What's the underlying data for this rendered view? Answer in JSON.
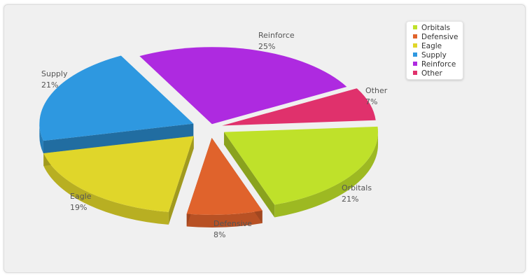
{
  "chart_data": {
    "type": "pie",
    "variant": "3d-exploded",
    "categories": [
      "Orbitals",
      "Defensive",
      "Eagle",
      "Supply",
      "Reinforce",
      "Other"
    ],
    "values": [
      21,
      8,
      19,
      21,
      25,
      7
    ],
    "unit": "%",
    "colors": [
      "#bfe12a",
      "#e0632c",
      "#e0d62a",
      "#2e98e0",
      "#ae2ae0",
      "#e0316c"
    ],
    "legend": "top-right",
    "labels": [
      {
        "name": "Orbitals",
        "pct": "21%"
      },
      {
        "name": "Defensive",
        "pct": "8%"
      },
      {
        "name": "Eagle",
        "pct": "19%"
      },
      {
        "name": "Supply",
        "pct": "21%"
      },
      {
        "name": "Reinforce",
        "pct": "25%"
      },
      {
        "name": "Other",
        "pct": "7%"
      }
    ]
  }
}
